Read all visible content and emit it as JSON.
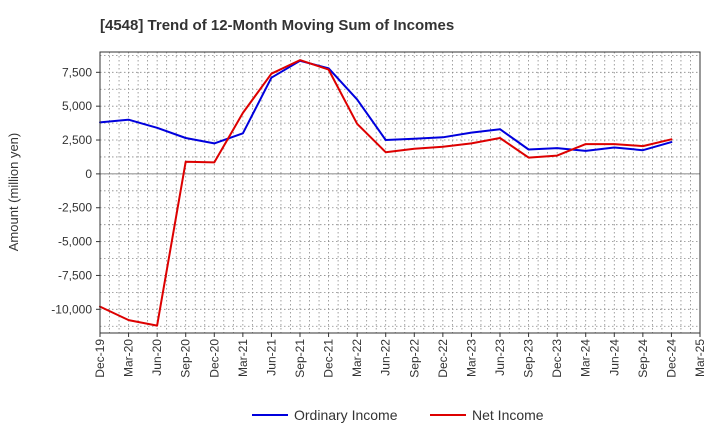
{
  "chart_data": {
    "type": "line",
    "title": "[4548]  Trend of 12-Month Moving Sum of Incomes",
    "xlabel": "",
    "ylabel": "Amount (million yen)",
    "ylim": [
      -11750,
      9000
    ],
    "yticks": [
      7500,
      5000,
      2500,
      0,
      -2500,
      -5000,
      -7500,
      -10000
    ],
    "ytick_labels": [
      "7,500",
      "5,000",
      "2,500",
      "0",
      "-2,500",
      "-5,000",
      "-7,500",
      "-10,000"
    ],
    "categories": [
      "Dec-19",
      "Mar-20",
      "Jun-20",
      "Sep-20",
      "Dec-20",
      "Mar-21",
      "Jun-21",
      "Sep-21",
      "Dec-21",
      "Mar-22",
      "Jun-22",
      "Sep-22",
      "Dec-22",
      "Mar-23",
      "Jun-23",
      "Sep-23",
      "Dec-23",
      "Mar-24",
      "Jun-24",
      "Sep-24",
      "Dec-24",
      "Mar-25"
    ],
    "grid": true,
    "legend_position": "bottom",
    "series": [
      {
        "name": "Ordinary Income",
        "color": "#0000dd",
        "values": [
          3800,
          4000,
          3400,
          2650,
          2250,
          3000,
          7100,
          8350,
          7800,
          5500,
          2500,
          2600,
          2700,
          3050,
          3300,
          1800,
          1900,
          1700,
          1950,
          1750,
          2350,
          null
        ]
      },
      {
        "name": "Net Income",
        "color": "#dd0000",
        "values": [
          -9800,
          -10800,
          -11200,
          900,
          850,
          4500,
          7400,
          8400,
          7700,
          3700,
          1600,
          1850,
          2000,
          2250,
          2650,
          1200,
          1350,
          2200,
          2200,
          2050,
          2550,
          null
        ]
      }
    ]
  }
}
